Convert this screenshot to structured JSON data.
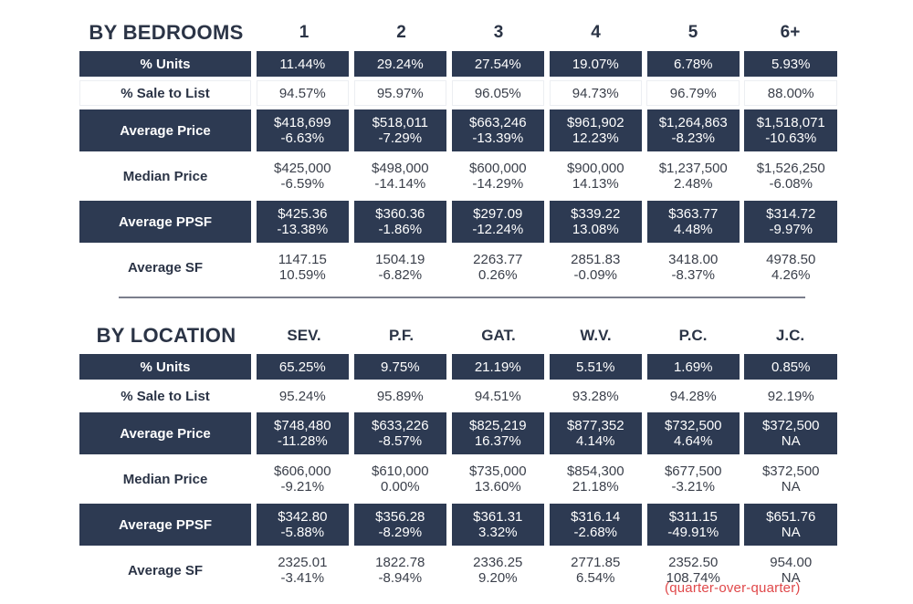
{
  "by_bedrooms": {
    "title": "BY BEDROOMS",
    "columns": [
      "1",
      "2",
      "3",
      "4",
      "5",
      "6+"
    ],
    "rows": {
      "pct_units": {
        "label": "% Units",
        "values": [
          "11.44%",
          "29.24%",
          "27.54%",
          "19.07%",
          "6.78%",
          "5.93%"
        ]
      },
      "sale_to_list": {
        "label": "% Sale to List",
        "values": [
          "94.57%",
          "95.97%",
          "96.05%",
          "94.73%",
          "96.79%",
          "88.00%"
        ]
      },
      "avg_price": {
        "label": "Average Price",
        "values": [
          "$418,699",
          "$518,011",
          "$663,246",
          "$961,902",
          "$1,264,863",
          "$1,518,071"
        ],
        "changes": [
          "-6.63%",
          "-7.29%",
          "-13.39%",
          "12.23%",
          "-8.23%",
          "-10.63%"
        ]
      },
      "median_price": {
        "label": "Median Price",
        "values": [
          "$425,000",
          "$498,000",
          "$600,000",
          "$900,000",
          "$1,237,500",
          "$1,526,250"
        ],
        "changes": [
          "-6.59%",
          "-14.14%",
          "-14.29%",
          "14.13%",
          "2.48%",
          "-6.08%"
        ]
      },
      "avg_ppsf": {
        "label": "Average PPSF",
        "values": [
          "$425.36",
          "$360.36",
          "$297.09",
          "$339.22",
          "$363.77",
          "$314.72"
        ],
        "changes": [
          "-13.38%",
          "-1.86%",
          "-12.24%",
          "13.08%",
          "4.48%",
          "-9.97%"
        ]
      },
      "avg_sf": {
        "label": "Average SF",
        "values": [
          "1147.15",
          "1504.19",
          "2263.77",
          "2851.83",
          "3418.00",
          "4978.50"
        ],
        "changes": [
          "10.59%",
          "-6.82%",
          "0.26%",
          "-0.09%",
          "-8.37%",
          "4.26%"
        ]
      }
    }
  },
  "by_location": {
    "title": "BY LOCATION",
    "columns": [
      "SEV.",
      "P.F.",
      "GAT.",
      "W.V.",
      "P.C.",
      "J.C."
    ],
    "rows": {
      "pct_units": {
        "label": "% Units",
        "values": [
          "65.25%",
          "9.75%",
          "21.19%",
          "5.51%",
          "1.69%",
          "0.85%"
        ]
      },
      "sale_to_list": {
        "label": "% Sale to List",
        "values": [
          "95.24%",
          "95.89%",
          "94.51%",
          "93.28%",
          "94.28%",
          "92.19%"
        ]
      },
      "avg_price": {
        "label": "Average Price",
        "values": [
          "$748,480",
          "$633,226",
          "$825,219",
          "$877,352",
          "$732,500",
          "$372,500"
        ],
        "changes": [
          "-11.28%",
          "-8.57%",
          "16.37%",
          "4.14%",
          "4.64%",
          "NA"
        ]
      },
      "median_price": {
        "label": "Median Price",
        "values": [
          "$606,000",
          "$610,000",
          "$735,000",
          "$854,300",
          "$677,500",
          "$372,500"
        ],
        "changes": [
          "-9.21%",
          "0.00%",
          "13.60%",
          "21.18%",
          "-3.21%",
          "NA"
        ]
      },
      "avg_ppsf": {
        "label": "Average PPSF",
        "values": [
          "$342.80",
          "$356.28",
          "$361.31",
          "$316.14",
          "$311.15",
          "$651.76"
        ],
        "changes": [
          "-5.88%",
          "-8.29%",
          "3.32%",
          "-2.68%",
          "-49.91%",
          "NA"
        ]
      },
      "avg_sf": {
        "label": "Average SF",
        "values": [
          "2325.01",
          "1822.78",
          "2336.25",
          "2771.85",
          "2352.50",
          "954.00"
        ],
        "changes": [
          "-3.41%",
          "-8.94%",
          "9.20%",
          "6.54%",
          "108.74%",
          "NA"
        ]
      }
    }
  },
  "footnote": "(quarter-over-quarter)",
  "colors": {
    "dark_fill": "#2d3a52",
    "text_dark": "#2b3446",
    "footnote": "#e0484a",
    "divider": "#7a7e8c"
  }
}
